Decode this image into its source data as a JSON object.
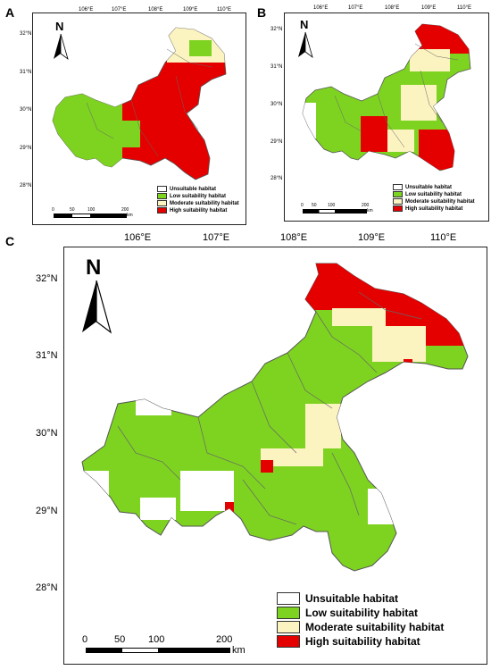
{
  "panels": {
    "a": {
      "label": "A"
    },
    "b": {
      "label": "B"
    },
    "c": {
      "label": "C"
    }
  },
  "longitude_ticks": [
    "106°E",
    "107°E",
    "108°E",
    "109°E",
    "110°E"
  ],
  "latitude_ticks": [
    "32°N",
    "31°N",
    "30°N",
    "29°N",
    "28°N"
  ],
  "north_arrow": {
    "label": "N"
  },
  "scale_bar": {
    "labels": [
      "0",
      "50",
      "100",
      "200"
    ],
    "unit": "km"
  },
  "legend": {
    "items": [
      {
        "label": "Unsuitable  habitat",
        "color": "#ffffff"
      },
      {
        "label": "Low suitability  habitat",
        "color": "#7ed321"
      },
      {
        "label": "Moderate suitability habitat",
        "color": "#fbf3c0"
      },
      {
        "label": "High suitability  habitat",
        "color": "#e50000"
      }
    ]
  },
  "colors": {
    "low": "#7ed321",
    "moderate": "#fbf3c0",
    "high": "#e50000",
    "boundary": "#555555"
  }
}
